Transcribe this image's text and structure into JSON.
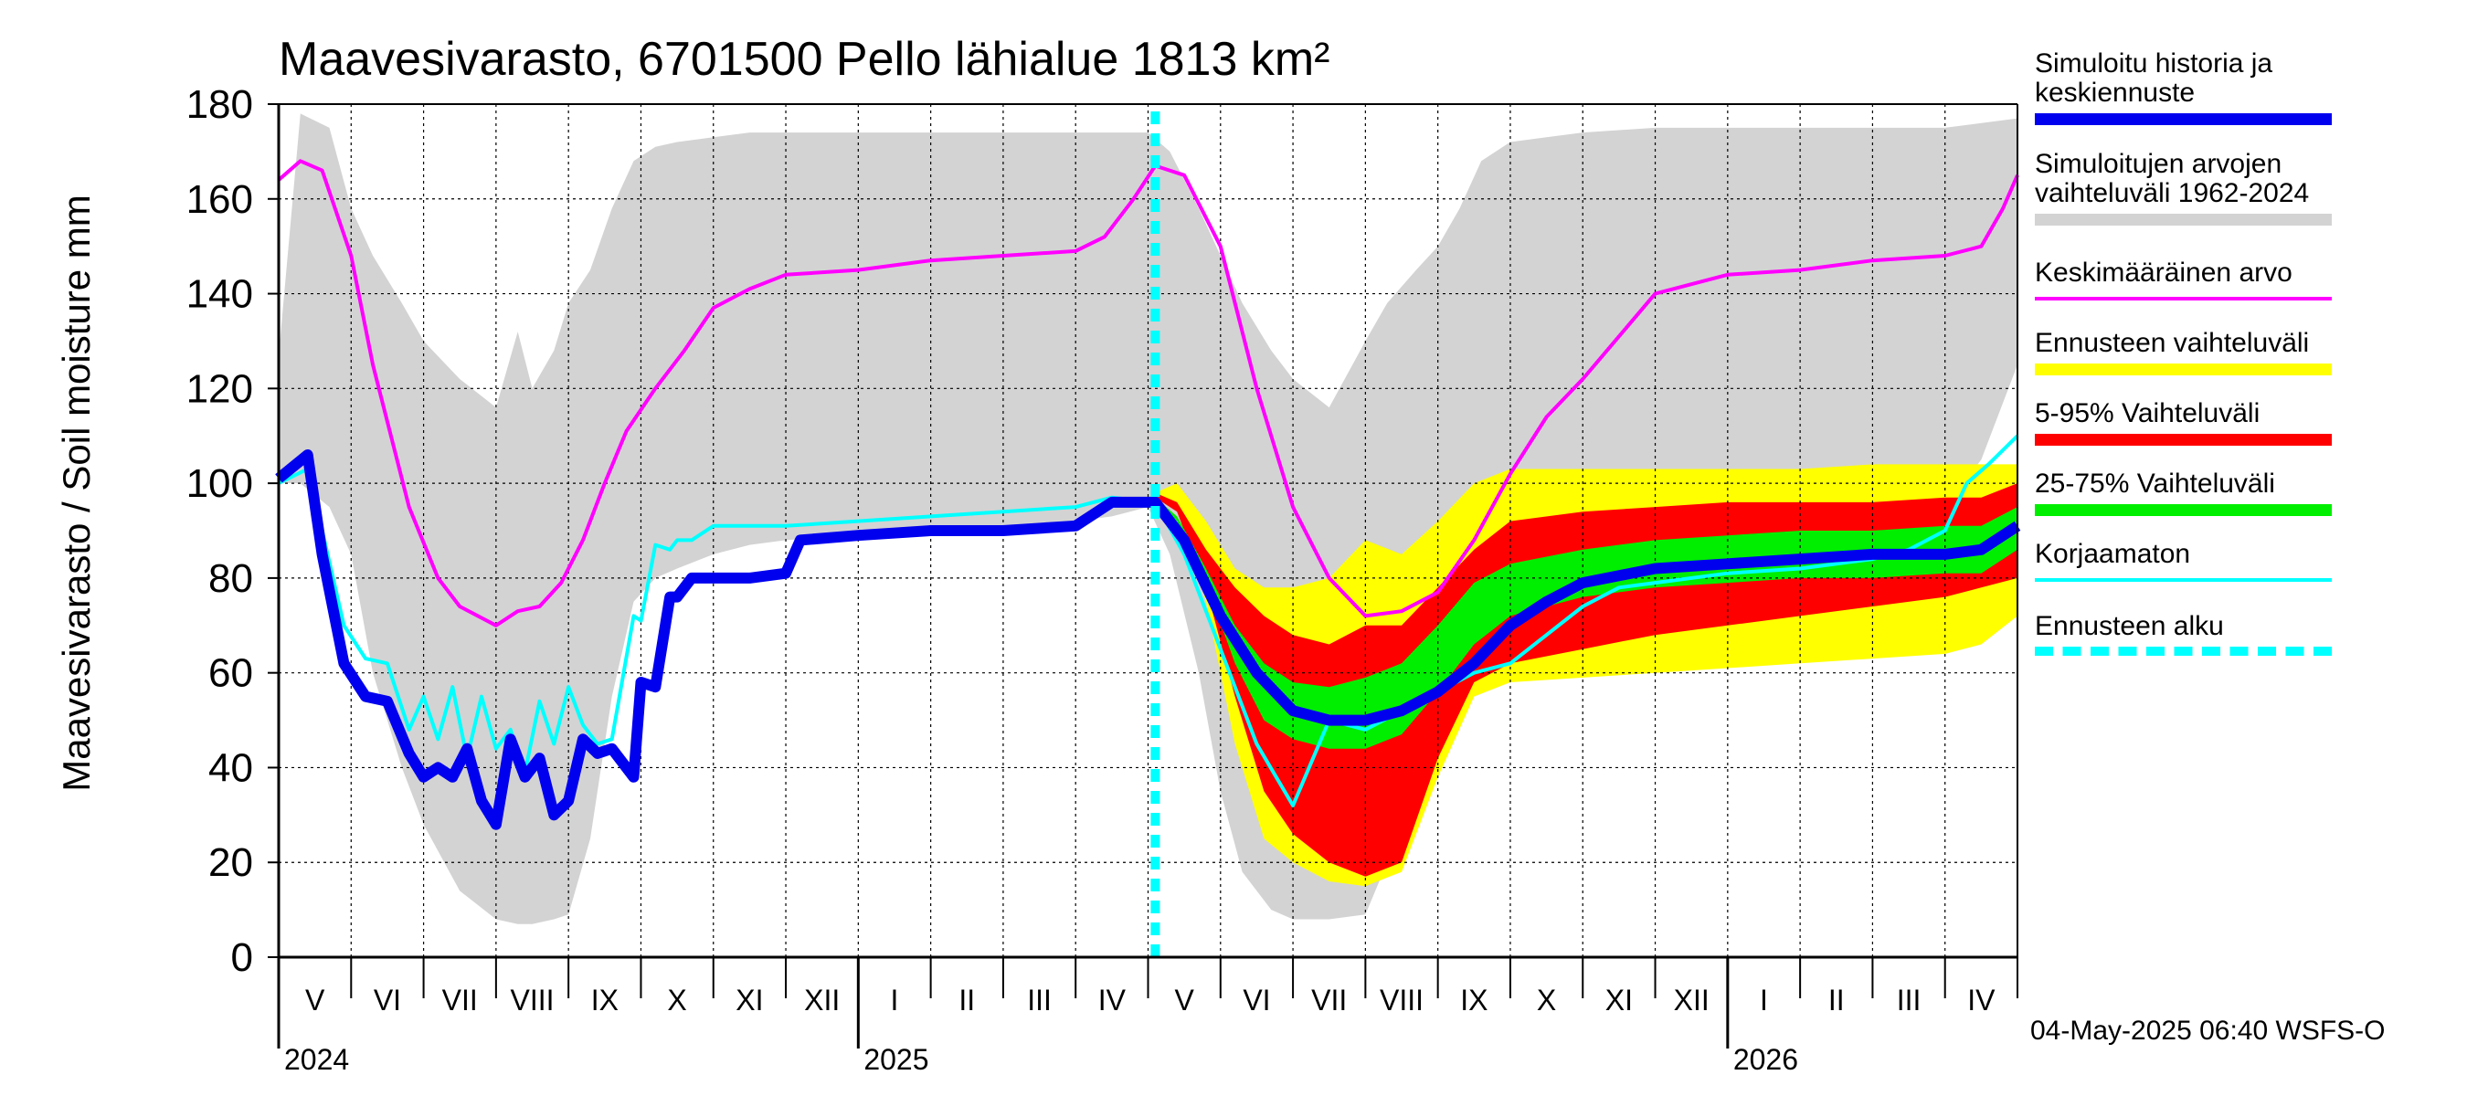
{
  "chart_data": {
    "type": "line",
    "title": "Maavesivarasto, 6701500 Pello lähialue 1813 km²",
    "ylabel": "Maavesivarasto / Soil moisture   mm",
    "ylim": [
      0,
      180
    ],
    "yticks": [
      0,
      20,
      40,
      60,
      80,
      100,
      120,
      140,
      160,
      180
    ],
    "xlim": [
      0,
      24
    ],
    "month_labels": [
      "V",
      "VI",
      "VII",
      "VIII",
      "IX",
      "X",
      "XI",
      "XII",
      "I",
      "II",
      "III",
      "IV",
      "V",
      "VI",
      "VII",
      "VIII",
      "IX",
      "X",
      "XI",
      "XII",
      "I",
      "II",
      "III",
      "IV"
    ],
    "year_labels": [
      {
        "label": "2024",
        "month": 0
      },
      {
        "label": "2025",
        "month": 8
      },
      {
        "label": "2026",
        "month": 20
      }
    ],
    "forecast_start_month": 12.1,
    "series": [
      {
        "name": "Simuloitujen arvojen vaihteluväli 1962-2024",
        "kind": "band",
        "color": "#d3d3d3",
        "x": [
          0,
          0.3,
          0.7,
          1.0,
          1.3,
          1.7,
          2.0,
          2.5,
          3.0,
          3.3,
          3.5,
          3.8,
          4.0,
          4.3,
          4.6,
          4.9,
          5.2,
          5.5,
          6.0,
          6.5,
          7.0,
          8.0,
          9.0,
          10.0,
          11.0,
          11.5,
          12.0,
          12.3,
          12.7,
          13.0,
          13.3,
          13.7,
          14.0,
          14.5,
          15.0,
          15.3,
          15.7,
          16.0,
          16.3,
          16.6,
          17.0,
          17.5,
          18.0,
          19.0,
          20.0,
          21.0,
          22.0,
          23.0,
          23.5,
          24.0
        ],
        "upper": [
          127,
          178,
          175,
          158,
          148,
          138,
          130,
          122,
          116,
          132,
          120,
          128,
          138,
          145,
          158,
          168,
          171,
          172,
          173,
          174,
          174,
          174,
          174,
          174,
          174,
          174,
          174,
          170,
          158,
          148,
          138,
          128,
          122,
          116,
          130,
          138,
          145,
          150,
          158,
          168,
          172,
          173,
          174,
          175,
          175,
          175,
          175,
          175,
          176,
          177
        ],
        "lower": [
          100,
          100,
          95,
          85,
          60,
          40,
          28,
          14,
          8,
          7,
          7,
          8,
          9,
          25,
          55,
          75,
          80,
          82,
          85,
          87,
          88,
          89,
          90,
          91,
          92,
          93,
          95,
          85,
          60,
          35,
          18,
          10,
          8,
          8,
          9,
          20,
          45,
          62,
          70,
          74,
          76,
          78,
          80,
          84,
          86,
          88,
          90,
          95,
          105,
          125
        ]
      },
      {
        "name": "Ennusteen vaihteluväli",
        "kind": "band",
        "color": "#ffff00",
        "x": [
          12.1,
          12.4,
          12.8,
          13.2,
          13.6,
          14.0,
          14.5,
          15.0,
          15.5,
          16.0,
          16.5,
          17.0,
          18.0,
          19.0,
          20.0,
          21.0,
          22.0,
          23.0,
          23.5,
          24.0
        ],
        "upper": [
          98,
          100,
          92,
          82,
          78,
          78,
          80,
          88,
          85,
          92,
          100,
          103,
          103,
          103,
          103,
          103,
          104,
          104,
          104,
          104
        ],
        "lower": [
          97,
          95,
          75,
          45,
          25,
          20,
          16,
          15,
          18,
          38,
          55,
          58,
          59,
          60,
          61,
          62,
          63,
          64,
          66,
          72
        ]
      },
      {
        "name": "5-95% Vaihteluväli",
        "kind": "band",
        "color": "#ff0000",
        "x": [
          12.1,
          12.4,
          12.8,
          13.2,
          13.6,
          14.0,
          14.5,
          15.0,
          15.5,
          16.0,
          16.5,
          17.0,
          18.0,
          19.0,
          20.0,
          21.0,
          22.0,
          23.0,
          23.5,
          24.0
        ],
        "upper": [
          98,
          96,
          86,
          78,
          72,
          68,
          66,
          70,
          70,
          78,
          86,
          92,
          94,
          95,
          96,
          96,
          96,
          97,
          97,
          100
        ],
        "lower": [
          97,
          94,
          78,
          55,
          35,
          26,
          20,
          17,
          20,
          42,
          58,
          62,
          65,
          68,
          70,
          72,
          74,
          76,
          78,
          80
        ]
      },
      {
        "name": "25-75% Vaihteluväli",
        "kind": "band",
        "color": "#00ee00",
        "x": [
          12.1,
          12.4,
          12.8,
          13.2,
          13.6,
          14.0,
          14.5,
          15.0,
          15.5,
          16.0,
          16.5,
          17.0,
          18.0,
          19.0,
          20.0,
          21.0,
          22.0,
          23.0,
          23.5,
          24.0
        ],
        "upper": [
          97,
          93,
          82,
          70,
          62,
          58,
          57,
          59,
          62,
          70,
          79,
          83,
          86,
          88,
          89,
          90,
          90,
          91,
          91,
          95
        ],
        "lower": [
          97,
          92,
          79,
          62,
          50,
          46,
          44,
          44,
          47,
          56,
          66,
          72,
          76,
          78,
          79,
          80,
          80,
          81,
          81,
          86
        ]
      },
      {
        "name": "Keskimääräinen arvo",
        "kind": "line",
        "color": "#ff00ff",
        "x": [
          0,
          0.3,
          0.6,
          1.0,
          1.3,
          1.8,
          2.2,
          2.5,
          3.0,
          3.3,
          3.6,
          3.9,
          4.2,
          4.5,
          4.8,
          5.2,
          5.6,
          6.0,
          6.5,
          7.0,
          8.0,
          9.0,
          10.0,
          11.0,
          11.4,
          11.8,
          12.1,
          12.5,
          13.0,
          13.5,
          14.0,
          14.5,
          15.0,
          15.5,
          16.0,
          16.5,
          17.0,
          17.5,
          18.0,
          18.5,
          19.0,
          20.0,
          21.0,
          22.0,
          23.0,
          23.5,
          23.8,
          24.0
        ],
        "y": [
          164,
          168,
          166,
          148,
          125,
          95,
          80,
          74,
          70,
          73,
          74,
          79,
          88,
          100,
          111,
          120,
          128,
          137,
          141,
          144,
          145,
          147,
          148,
          149,
          152,
          160,
          167,
          165,
          150,
          120,
          95,
          80,
          72,
          73,
          77,
          88,
          102,
          114,
          122,
          131,
          140,
          144,
          145,
          147,
          148,
          150,
          158,
          165
        ]
      },
      {
        "name": "Korjaamaton",
        "kind": "line",
        "color": "#00ffff",
        "x": [
          0,
          0.4,
          0.6,
          0.9,
          1.2,
          1.5,
          1.8,
          2.0,
          2.2,
          2.4,
          2.6,
          2.8,
          3.0,
          3.2,
          3.4,
          3.6,
          3.8,
          4.0,
          4.2,
          4.4,
          4.6,
          4.9,
          5.0,
          5.2,
          5.4,
          5.5,
          5.7,
          6.0,
          6.5,
          7.0,
          8.0,
          9.0,
          10.0,
          11.0,
          11.5,
          12.1,
          12.5,
          13.0,
          13.5,
          14.0,
          14.5,
          15.0,
          15.5,
          16.0,
          16.5,
          17.0,
          17.5,
          18.0,
          18.5,
          19.0,
          20.0,
          21.0,
          22.0,
          22.5,
          23.0,
          23.3,
          23.6,
          24.0
        ],
        "y": [
          100,
          103,
          90,
          70,
          63,
          62,
          48,
          55,
          46,
          57,
          42,
          55,
          44,
          48,
          39,
          54,
          45,
          57,
          49,
          45,
          46,
          72,
          71,
          87,
          86,
          88,
          88,
          91,
          91,
          91,
          92,
          93,
          94,
          95,
          97,
          96,
          85,
          65,
          45,
          32,
          50,
          48,
          52,
          56,
          60,
          62,
          68,
          74,
          78,
          79,
          81,
          82,
          84,
          86,
          90,
          100,
          104,
          110
        ]
      },
      {
        "name": "Simuloitu historia ja keskiennuste",
        "kind": "line",
        "color": "#0000ee",
        "x": [
          0,
          0.4,
          0.6,
          0.9,
          1.2,
          1.5,
          1.8,
          2.0,
          2.2,
          2.4,
          2.6,
          2.8,
          3.0,
          3.2,
          3.4,
          3.6,
          3.8,
          4.0,
          4.2,
          4.4,
          4.6,
          4.9,
          5.0,
          5.2,
          5.4,
          5.5,
          5.7,
          6.0,
          6.5,
          7.0,
          7.2,
          8.0,
          9.0,
          10.0,
          11.0,
          11.5,
          12.1,
          12.5,
          13.0,
          13.5,
          14.0,
          14.5,
          15.0,
          15.5,
          16.0,
          16.5,
          17.0,
          17.5,
          18.0,
          19.0,
          20.0,
          21.0,
          22.0,
          23.0,
          23.5,
          24.0
        ],
        "y": [
          101,
          106,
          85,
          62,
          55,
          54,
          43,
          38,
          40,
          38,
          44,
          33,
          28,
          46,
          38,
          42,
          30,
          33,
          46,
          43,
          44,
          38,
          58,
          57,
          76,
          76,
          80,
          80,
          80,
          81,
          88,
          89,
          90,
          90,
          91,
          96,
          96,
          88,
          72,
          60,
          52,
          50,
          50,
          52,
          56,
          62,
          70,
          75,
          79,
          82,
          83,
          84,
          85,
          85,
          86,
          91
        ]
      }
    ],
    "legend": [
      {
        "label": "Simuloitu historia ja\nkeskiennuste",
        "color": "#0000ee",
        "style": "thick"
      },
      {
        "label": "Simuloitujen arvojen\nvaihteluväli 1962-2024",
        "color": "#d3d3d3",
        "style": "thick"
      },
      {
        "label": "Keskimääräinen arvo",
        "color": "#ff00ff",
        "style": "thin"
      },
      {
        "label": "Ennusteen vaihteluväli",
        "color": "#ffff00",
        "style": "thick"
      },
      {
        "label": "5-95% Vaihteluväli",
        "color": "#ff0000",
        "style": "thick"
      },
      {
        "label": "25-75% Vaihteluväli",
        "color": "#00ee00",
        "style": "thick"
      },
      {
        "label": "Korjaamaton",
        "color": "#00ffff",
        "style": "thin"
      },
      {
        "label": "Ennusteen alku",
        "color": "#00ffff",
        "style": "dashed"
      }
    ],
    "timestamp": "04-May-2025 06:40 WSFS-O"
  }
}
